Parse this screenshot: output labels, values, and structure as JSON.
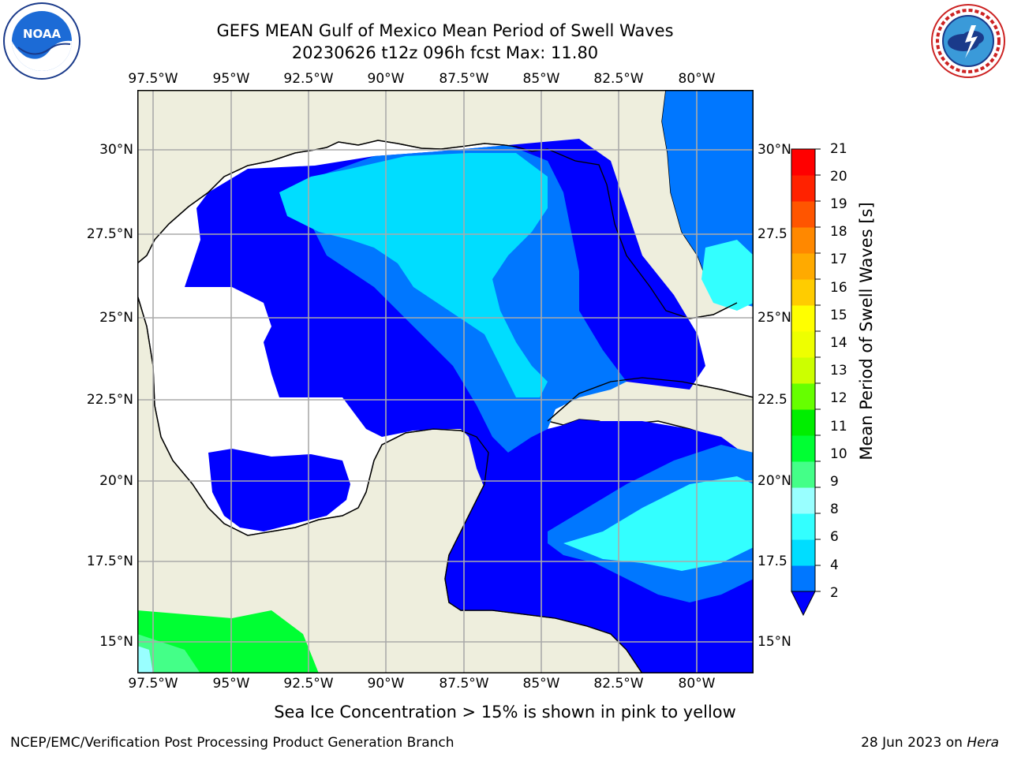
{
  "header": {
    "title_line1": "GEFS MEAN Gulf of Mexico Mean Period of Swell Waves",
    "title_line2": "20230626 t12z 096h fcst   Max: 11.80"
  },
  "logos": {
    "left": {
      "name": "noaa-logo",
      "text": "NOAA",
      "ring_text": "NATIONAL OCEANIC AND ATMOSPHERIC ADMINISTRATION · U.S. DEPARTMENT OF COMMERCE"
    },
    "right": {
      "name": "nws-logo",
      "ring_text": "NATIONAL WEATHER SERVICE"
    }
  },
  "map": {
    "lon_ticks_top": [
      "97.5°W",
      "95°W",
      "92.5°W",
      "90°W",
      "87.5°W",
      "85°W",
      "82.5°W",
      "80°W"
    ],
    "lon_ticks_bottom": [
      "97.5°W",
      "95°W",
      "92.5°W",
      "90°W",
      "87.5°W",
      "85°W",
      "82.5°W",
      "80°W"
    ],
    "lat_ticks_left": [
      "30°N",
      "27.5°N",
      "25°N",
      "22.5°N",
      "20°N",
      "17.5°N",
      "15°N"
    ],
    "lat_ticks_right": [
      "30°N",
      "27.5",
      "25°N",
      "22.5",
      "20°N",
      "17.5",
      "15°N"
    ],
    "colors": {
      "land": "#eeeedd",
      "no_data": "#ffffff",
      "grid": "#aaaaaa",
      "coast": "#000000"
    }
  },
  "colorbar": {
    "label": "Mean Period of Swell Waves [s]",
    "ticks": [
      "21",
      "20",
      "19",
      "18",
      "17",
      "16",
      "15",
      "14",
      "13",
      "12",
      "11",
      "10",
      "9",
      "8",
      "6",
      "4",
      "2"
    ],
    "bins": [
      {
        "from": 2,
        "to": 4,
        "color": "#0077ff"
      },
      {
        "from": 4,
        "to": 6,
        "color": "#00ddff"
      },
      {
        "from": 6,
        "to": 8,
        "color": "#33ffff"
      },
      {
        "from": 8,
        "to": 9,
        "color": "#99ffff"
      },
      {
        "from": 9,
        "to": 10,
        "color": "#44ff88"
      },
      {
        "from": 10,
        "to": 11,
        "color": "#00ff33"
      },
      {
        "from": 11,
        "to": 12,
        "color": "#00ee00"
      },
      {
        "from": 12,
        "to": 13,
        "color": "#66ff00"
      },
      {
        "from": 13,
        "to": 14,
        "color": "#ccff00"
      },
      {
        "from": 14,
        "to": 15,
        "color": "#eeff00"
      },
      {
        "from": 15,
        "to": 16,
        "color": "#ffff00"
      },
      {
        "from": 16,
        "to": 17,
        "color": "#ffcc00"
      },
      {
        "from": 17,
        "to": 18,
        "color": "#ffaa00"
      },
      {
        "from": 18,
        "to": 19,
        "color": "#ff8800"
      },
      {
        "from": 19,
        "to": 20,
        "color": "#ff5500"
      },
      {
        "from": 20,
        "to": 21,
        "color": "#ff2200"
      },
      {
        "from": 21,
        "to": 22,
        "color": "#ff0000"
      }
    ],
    "under_color": "#0000ff"
  },
  "caption": "Sea Ice Concentration > 15% is shown in pink to yellow",
  "footer": {
    "left": "NCEP/EMC/Verification Post Processing Product Generation Branch",
    "right_date": "28 Jun 2023 on ",
    "right_host": "Hera"
  }
}
